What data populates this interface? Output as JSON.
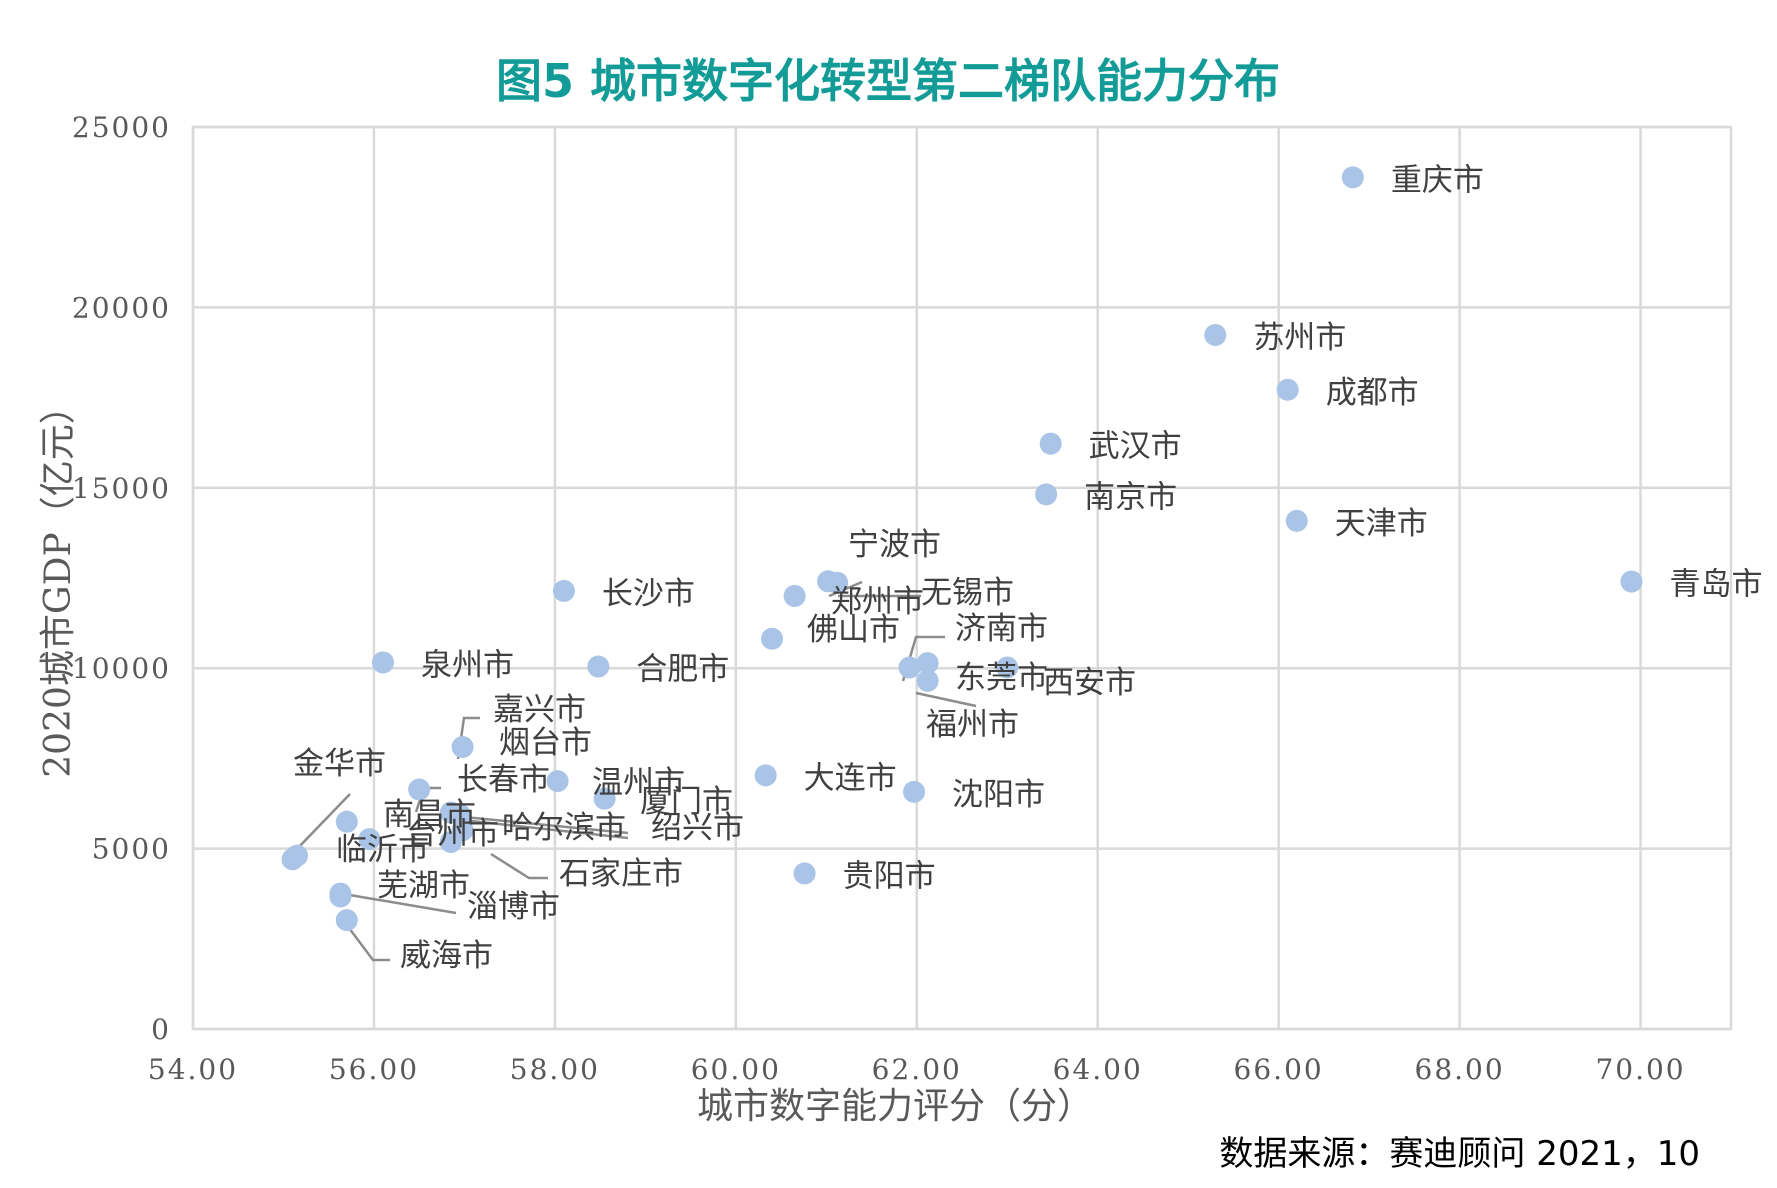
{
  "chart_data": {
    "type": "scatter",
    "title": "图5  城市数字化转型第二梯队能力分布",
    "xlabel": "城市数字能力评分（分）",
    "ylabel": "2020城市GDP（亿元）",
    "xlim": [
      54,
      71
    ],
    "ylim": [
      0,
      25000
    ],
    "x_ticks": [
      "54.00",
      "56.00",
      "58.00",
      "60.00",
      "62.00",
      "64.00",
      "66.00",
      "68.00",
      "70.00"
    ],
    "x_tick_values": [
      54,
      56,
      58,
      60,
      62,
      64,
      66,
      68,
      70
    ],
    "y_ticks": [
      "0",
      "5000",
      "10000",
      "15000",
      "20000",
      "25000"
    ],
    "y_tick_values": [
      0,
      5000,
      10000,
      15000,
      20000,
      25000
    ],
    "grid": true,
    "marker_color": "#a9c4e6",
    "points": [
      {
        "name": "重庆市",
        "x": 66.82,
        "y": 23605
      },
      {
        "name": "苏州市",
        "x": 65.3,
        "y": 19236
      },
      {
        "name": "成都市",
        "x": 66.1,
        "y": 17717
      },
      {
        "name": "武汉市",
        "x": 63.48,
        "y": 16223
      },
      {
        "name": "南京市",
        "x": 63.43,
        "y": 14818
      },
      {
        "name": "天津市",
        "x": 66.2,
        "y": 14084
      },
      {
        "name": "青岛市",
        "x": 69.9,
        "y": 12401
      },
      {
        "name": "宁波市",
        "x": 61.02,
        "y": 12409
      },
      {
        "name": "无锡市",
        "x": 61.12,
        "y": 12370
      },
      {
        "name": "郑州市",
        "x": 60.65,
        "y": 12003
      },
      {
        "name": "长沙市",
        "x": 58.1,
        "y": 12142
      },
      {
        "name": "佛山市",
        "x": 60.4,
        "y": 10816
      },
      {
        "name": "济南市",
        "x": 62.12,
        "y": 10141
      },
      {
        "name": "福州市",
        "x": 61.92,
        "y": 10020
      },
      {
        "name": "东莞市",
        "x": 62.12,
        "y": 9650
      },
      {
        "name": "西安市",
        "x": 63.0,
        "y": 10020
      },
      {
        "name": "泉州市",
        "x": 56.1,
        "y": 10159
      },
      {
        "name": "合肥市",
        "x": 58.48,
        "y": 10046
      },
      {
        "name": "嘉兴市",
        "x": 56.98,
        "y": 5510
      },
      {
        "name": "烟台市",
        "x": 56.98,
        "y": 7816
      },
      {
        "name": "长春市",
        "x": 56.5,
        "y": 6638
      },
      {
        "name": "温州市",
        "x": 58.03,
        "y": 6870
      },
      {
        "name": "厦门市",
        "x": 58.55,
        "y": 6384
      },
      {
        "name": "大连市",
        "x": 60.33,
        "y": 7030
      },
      {
        "name": "沈阳市",
        "x": 61.97,
        "y": 6572
      },
      {
        "name": "金华市",
        "x": 55.1,
        "y": 4704
      },
      {
        "name": "南昌市",
        "x": 55.7,
        "y": 5746
      },
      {
        "name": "台州市",
        "x": 55.95,
        "y": 5263
      },
      {
        "name": "哈尔滨市",
        "x": 56.85,
        "y": 5184
      },
      {
        "name": "绍兴市",
        "x": 56.85,
        "y": 6001
      },
      {
        "name": "石家庄市",
        "x": 56.95,
        "y": 5935
      },
      {
        "name": "临沂市",
        "x": 55.15,
        "y": 4805
      },
      {
        "name": "贵阳市",
        "x": 60.76,
        "y": 4312
      },
      {
        "name": "芜湖市",
        "x": 55.63,
        "y": 3753
      },
      {
        "name": "淄博市",
        "x": 55.63,
        "y": 3672
      },
      {
        "name": "威海市",
        "x": 55.7,
        "y": 3018
      }
    ]
  },
  "source": "数据来源：赛迪顾问  2021，10"
}
